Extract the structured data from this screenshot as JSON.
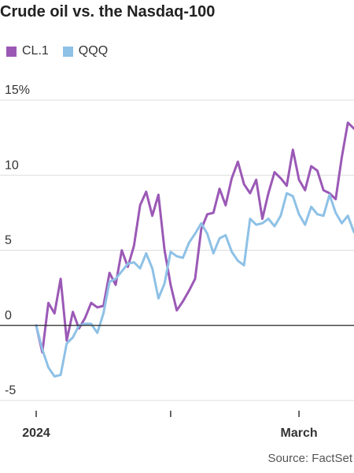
{
  "title": "Crude oil vs. the Nasdaq-100",
  "source": "Source: FactSet",
  "chart_data": {
    "type": "line",
    "title": "Crude oil vs. the Nasdaq-100",
    "xlabel": "",
    "ylabel": "",
    "ylim": [
      -5,
      15
    ],
    "y_ticks": [
      -5,
      0,
      5,
      10,
      15
    ],
    "y_tick_labels": [
      "-5",
      "0",
      "5",
      "10",
      "15%"
    ],
    "x_tick_labels": [
      {
        "label": "2024",
        "index": 0
      },
      {
        "label": "",
        "index": 22
      },
      {
        "label": "March",
        "index": 43
      }
    ],
    "grid": "horizontal",
    "zero_line": true,
    "legend_position": "top-left",
    "series": [
      {
        "name": "CL.1",
        "color": "#9b59b6",
        "values": [
          0,
          -1.8,
          1.5,
          0.8,
          3.1,
          -1.0,
          0.9,
          -0.2,
          0.5,
          1.5,
          1.2,
          1.3,
          3.5,
          2.7,
          5.0,
          3.9,
          5.3,
          8.0,
          8.9,
          7.3,
          8.7,
          5.0,
          2.7,
          1.0,
          1.6,
          2.3,
          3.1,
          6.4,
          7.4,
          7.5,
          9.1,
          8.0,
          9.8,
          10.9,
          9.4,
          8.8,
          9.7,
          7.1,
          8.8,
          10.2,
          9.8,
          9.3,
          11.7,
          9.7,
          9.0,
          10.6,
          10.3,
          9.0,
          8.8,
          8.4,
          11.2,
          13.5,
          13.1
        ]
      },
      {
        "name": "QQQ",
        "color": "#8ec1e6",
        "values": [
          0,
          -1.6,
          -2.8,
          -3.4,
          -3.3,
          -1.2,
          -0.8,
          0.0,
          0.1,
          0.1,
          -0.5,
          0.8,
          2.9,
          3.1,
          3.6,
          4.1,
          4.2,
          3.8,
          4.8,
          3.8,
          1.8,
          2.8,
          4.9,
          4.6,
          4.5,
          5.5,
          6.1,
          6.8,
          6.1,
          4.8,
          5.8,
          6.0,
          4.9,
          4.3,
          4.0,
          7.1,
          6.7,
          6.8,
          7.1,
          6.6,
          7.3,
          8.8,
          8.6,
          7.4,
          6.7,
          7.9,
          7.4,
          7.3,
          8.7,
          7.5,
          6.8,
          7.3,
          6.2
        ]
      }
    ]
  }
}
